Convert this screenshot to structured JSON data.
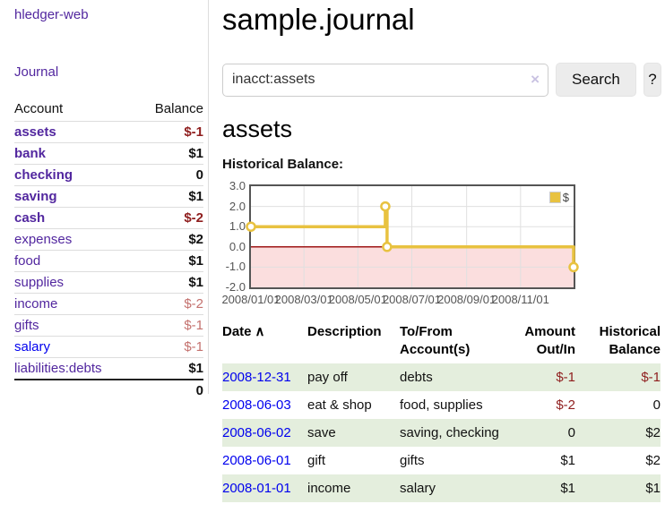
{
  "sidebar": {
    "brand": "hledger-web",
    "journal_link": "Journal",
    "columns": {
      "account": "Account",
      "balance": "Balance"
    },
    "accounts": [
      {
        "name": "assets",
        "balance": "$-1",
        "indent": 1,
        "bold": true
      },
      {
        "name": "bank",
        "balance": "$1",
        "indent": 2,
        "bold": true
      },
      {
        "name": "checking",
        "balance": "0",
        "indent": 3,
        "bold": true
      },
      {
        "name": "saving",
        "balance": "$1",
        "indent": 3,
        "bold": true
      },
      {
        "name": "cash",
        "balance": "$-2",
        "indent": 2,
        "bold": true
      },
      {
        "name": "expenses",
        "balance": "$2",
        "indent": 1,
        "bold": false
      },
      {
        "name": "food",
        "balance": "$1",
        "indent": 2,
        "bold": false
      },
      {
        "name": "supplies",
        "balance": "$1",
        "indent": 2,
        "bold": false
      },
      {
        "name": "income",
        "balance": "$-2",
        "indent": 1,
        "bold": false
      },
      {
        "name": "gifts",
        "balance": "$-1",
        "indent": 2,
        "bold": false
      },
      {
        "name": "salary",
        "balance": "$-1",
        "indent": 2,
        "bold": false,
        "link_color": "blue"
      },
      {
        "name": "liabilities:debts",
        "balance": "$1",
        "indent": 1,
        "bold": false
      }
    ],
    "total": "0"
  },
  "main": {
    "title": "sample.journal",
    "search": {
      "query": "inacct:assets",
      "clear_icon": "×",
      "button_label": "Search",
      "help_label": "?"
    },
    "account_heading": "assets",
    "register": {
      "columns": {
        "date": "Date",
        "description": "Description",
        "accounts": "To/From Account(s)",
        "amount": "Amount Out/In",
        "balance": "Historical Balance"
      },
      "sort_icon": "∧",
      "rows": [
        {
          "date": "2008-12-31",
          "description": "pay off",
          "accounts": "debts",
          "amount": "$-1",
          "balance": "$-1"
        },
        {
          "date": "2008-06-03",
          "description": "eat & shop",
          "accounts": "food, supplies",
          "amount": "$-2",
          "balance": "0"
        },
        {
          "date": "2008-06-02",
          "description": "save",
          "accounts": "saving, checking",
          "amount": "0",
          "balance": "$2"
        },
        {
          "date": "2008-06-01",
          "description": "gift",
          "accounts": "gifts",
          "amount": "$1",
          "balance": "$2"
        },
        {
          "date": "2008-01-01",
          "description": "income",
          "accounts": "salary",
          "amount": "$1",
          "balance": "$1"
        }
      ]
    }
  },
  "chart_data": {
    "type": "line",
    "title": "Historical Balance:",
    "step": true,
    "series": [
      {
        "name": "$",
        "color": "#e8c240",
        "points": [
          [
            "2008-01-01",
            1
          ],
          [
            "2008-06-01",
            2
          ],
          [
            "2008-06-03",
            0
          ],
          [
            "2008-12-31",
            -1
          ]
        ]
      }
    ],
    "x_range": [
      "2008-01-01",
      "2008-12-31"
    ],
    "x_ticks": [
      "2008/01/01",
      "2008/03/01",
      "2008/05/01",
      "2008/07/01",
      "2008/09/01",
      "2008/11/01"
    ],
    "y_ticks": [
      3.0,
      2.0,
      1.0,
      0.0,
      -1.0,
      -2.0
    ],
    "ylim": [
      -2,
      3
    ],
    "grid": true,
    "grid_color": "#e0e0e0",
    "negative_region_color": "#fbdede",
    "zero_line_color": "#9e1616",
    "legend_position": "top-right"
  },
  "colors": {
    "link_purple": "#52279f",
    "link_blue": "#0000ee",
    "negative_strong": "#8f1e1e",
    "negative_soft": "#c4716e",
    "row_green": "#e4eedd",
    "series_gold": "#e8c240"
  }
}
